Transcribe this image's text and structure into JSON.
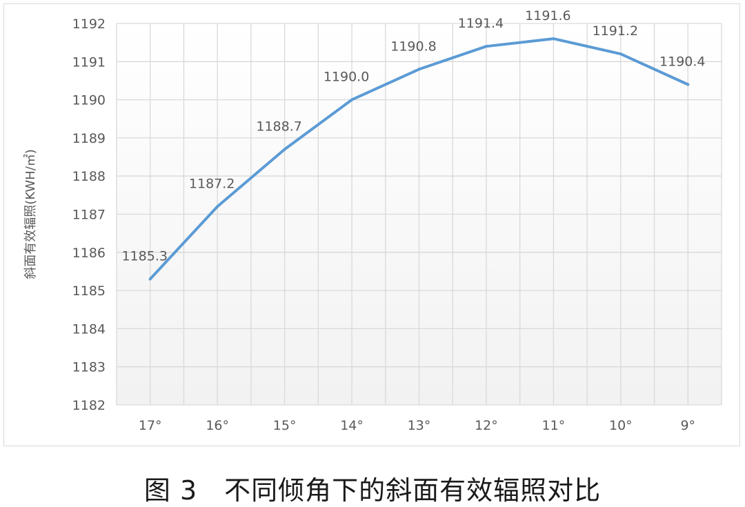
{
  "caption": "图 3　不同倾角下的斜面有效辐照对比",
  "chart_data": {
    "type": "line",
    "categories": [
      "17°",
      "16°",
      "15°",
      "14°",
      "13°",
      "12°",
      "11°",
      "10°",
      "9°"
    ],
    "series": [
      {
        "values": [
          1185.3,
          1187.2,
          1188.7,
          1190.0,
          1190.8,
          1191.4,
          1191.6,
          1191.2,
          1190.4
        ],
        "labels": [
          "1185.3",
          "1187.2",
          "1188.7",
          "1190.0",
          "1190.8",
          "1191.4",
          "1191.6",
          "1191.2",
          "1190.4"
        ],
        "color": "#5b9bd5"
      }
    ],
    "title": "",
    "xlabel": "",
    "ylabel": "斜面有效辐照(KWH/㎡)",
    "ylim": [
      1182,
      1192
    ],
    "yticks": [
      1182,
      1183,
      1184,
      1185,
      1186,
      1187,
      1188,
      1189,
      1190,
      1191,
      1192
    ],
    "grid": true,
    "gridColor": "#d9d9d9",
    "plotBackground": "#f2f2f2",
    "legend": "none"
  }
}
